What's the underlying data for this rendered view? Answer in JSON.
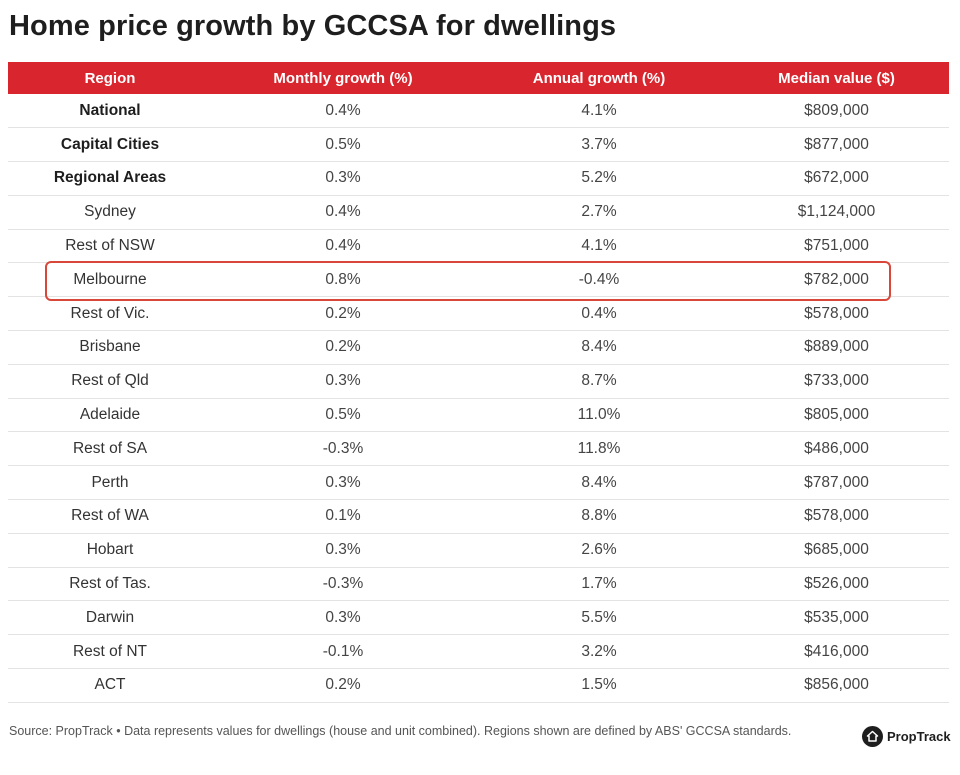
{
  "title": "Home price growth by GCCSA for dwellings",
  "chart_data": {
    "type": "table",
    "title": "Home price growth by GCCSA for dwellings",
    "columns": [
      "Region",
      "Monthly growth (%)",
      "Annual growth (%)",
      "Median value ($)"
    ],
    "rows": [
      {
        "region": "National",
        "monthly": "0.4%",
        "annual": "4.1%",
        "median": "$809,000",
        "bold": true,
        "highlight": false
      },
      {
        "region": "Capital Cities",
        "monthly": "0.5%",
        "annual": "3.7%",
        "median": "$877,000",
        "bold": true,
        "highlight": false
      },
      {
        "region": "Regional Areas",
        "monthly": "0.3%",
        "annual": "5.2%",
        "median": "$672,000",
        "bold": true,
        "highlight": false
      },
      {
        "region": "Sydney",
        "monthly": "0.4%",
        "annual": "2.7%",
        "median": "$1,124,000",
        "bold": false,
        "highlight": false
      },
      {
        "region": "Rest of NSW",
        "monthly": "0.4%",
        "annual": "4.1%",
        "median": "$751,000",
        "bold": false,
        "highlight": false
      },
      {
        "region": "Melbourne",
        "monthly": "0.8%",
        "annual": "-0.4%",
        "median": "$782,000",
        "bold": false,
        "highlight": true
      },
      {
        "region": "Rest of Vic.",
        "monthly": "0.2%",
        "annual": "0.4%",
        "median": "$578,000",
        "bold": false,
        "highlight": false
      },
      {
        "region": "Brisbane",
        "monthly": "0.2%",
        "annual": "8.4%",
        "median": "$889,000",
        "bold": false,
        "highlight": false
      },
      {
        "region": "Rest of Qld",
        "monthly": "0.3%",
        "annual": "8.7%",
        "median": "$733,000",
        "bold": false,
        "highlight": false
      },
      {
        "region": "Adelaide",
        "monthly": "0.5%",
        "annual": "11.0%",
        "median": "$805,000",
        "bold": false,
        "highlight": false
      },
      {
        "region": "Rest of SA",
        "monthly": "-0.3%",
        "annual": "11.8%",
        "median": "$486,000",
        "bold": false,
        "highlight": false
      },
      {
        "region": "Perth",
        "monthly": "0.3%",
        "annual": "8.4%",
        "median": "$787,000",
        "bold": false,
        "highlight": false
      },
      {
        "region": "Rest of WA",
        "monthly": "0.1%",
        "annual": "8.8%",
        "median": "$578,000",
        "bold": false,
        "highlight": false
      },
      {
        "region": "Hobart",
        "monthly": "0.3%",
        "annual": "2.6%",
        "median": "$685,000",
        "bold": false,
        "highlight": false
      },
      {
        "region": "Rest of Tas.",
        "monthly": "-0.3%",
        "annual": "1.7%",
        "median": "$526,000",
        "bold": false,
        "highlight": false
      },
      {
        "region": "Darwin",
        "monthly": "0.3%",
        "annual": "5.5%",
        "median": "$535,000",
        "bold": false,
        "highlight": false
      },
      {
        "region": "Rest of NT",
        "monthly": "-0.1%",
        "annual": "3.2%",
        "median": "$416,000",
        "bold": false,
        "highlight": false
      },
      {
        "region": "ACT",
        "monthly": "0.2%",
        "annual": "1.5%",
        "median": "$856,000",
        "bold": false,
        "highlight": false
      }
    ]
  },
  "source": "Source: PropTrack • Data represents values for dwellings (house and unit combined). Regions shown are defined by ABS' GCCSA standards.",
  "brand": {
    "name": "PropTrack",
    "icon": "house-icon"
  },
  "colors": {
    "header_bg": "#d9262e",
    "highlight_border": "#d9473b"
  }
}
